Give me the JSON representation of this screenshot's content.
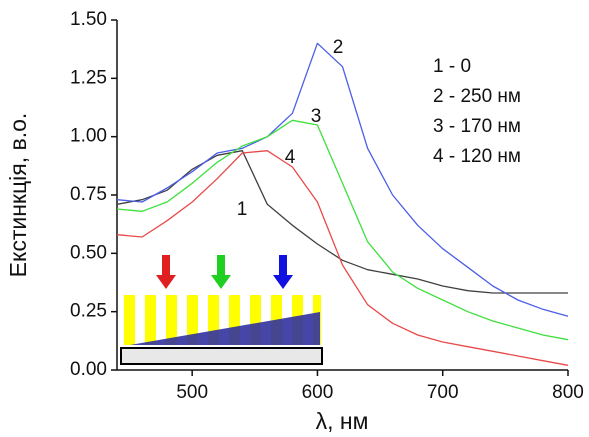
{
  "chart_data": {
    "type": "line",
    "x_label": "λ, нм",
    "y_label": "Екстинкція, в.о.",
    "x": [
      440,
      460,
      480,
      500,
      520,
      540,
      560,
      580,
      600,
      620,
      640,
      660,
      680,
      700,
      720,
      740,
      760,
      780,
      800
    ],
    "series": [
      {
        "name": "1",
        "color": "#404040",
        "values": [
          0.71,
          0.73,
          0.77,
          0.86,
          0.92,
          0.94,
          0.71,
          0.62,
          0.54,
          0.47,
          0.43,
          0.41,
          0.39,
          0.36,
          0.34,
          0.33,
          0.33,
          0.33,
          0.33
        ]
      },
      {
        "name": "2",
        "color": "#4a5ee8",
        "values": [
          0.73,
          0.72,
          0.78,
          0.85,
          0.93,
          0.95,
          1.0,
          1.1,
          1.4,
          1.3,
          0.95,
          0.75,
          0.62,
          0.52,
          0.44,
          0.36,
          0.3,
          0.26,
          0.23
        ]
      },
      {
        "name": "3",
        "color": "#3ee03e",
        "values": [
          0.69,
          0.68,
          0.72,
          0.8,
          0.89,
          0.96,
          1.0,
          1.07,
          1.05,
          0.8,
          0.55,
          0.42,
          0.35,
          0.3,
          0.25,
          0.21,
          0.18,
          0.15,
          0.13
        ]
      },
      {
        "name": "4",
        "color": "#e84a4a",
        "values": [
          0.58,
          0.57,
          0.64,
          0.72,
          0.82,
          0.93,
          0.94,
          0.87,
          0.72,
          0.45,
          0.28,
          0.2,
          0.15,
          0.12,
          0.1,
          0.08,
          0.06,
          0.04,
          0.02
        ]
      }
    ],
    "legend": [
      "1 - 0",
      "2 - 250 нм",
      "3 - 170 нм",
      "4 - 120 нм"
    ],
    "xlim": [
      440,
      800
    ],
    "ylim": [
      0,
      1.5
    ],
    "xticks": [
      500,
      600,
      700,
      800
    ],
    "yticks": [
      {
        "value": 0,
        "label": "0.00"
      },
      {
        "value": 0.25,
        "label": "0.25"
      },
      {
        "value": 0.5,
        "label": "0.50"
      },
      {
        "value": 0.75,
        "label": "0.75"
      },
      {
        "value": 1,
        "label": "1.00"
      },
      {
        "value": 1.25,
        "label": "1.25"
      },
      {
        "value": 1.5,
        "label": "1.50"
      }
    ]
  }
}
